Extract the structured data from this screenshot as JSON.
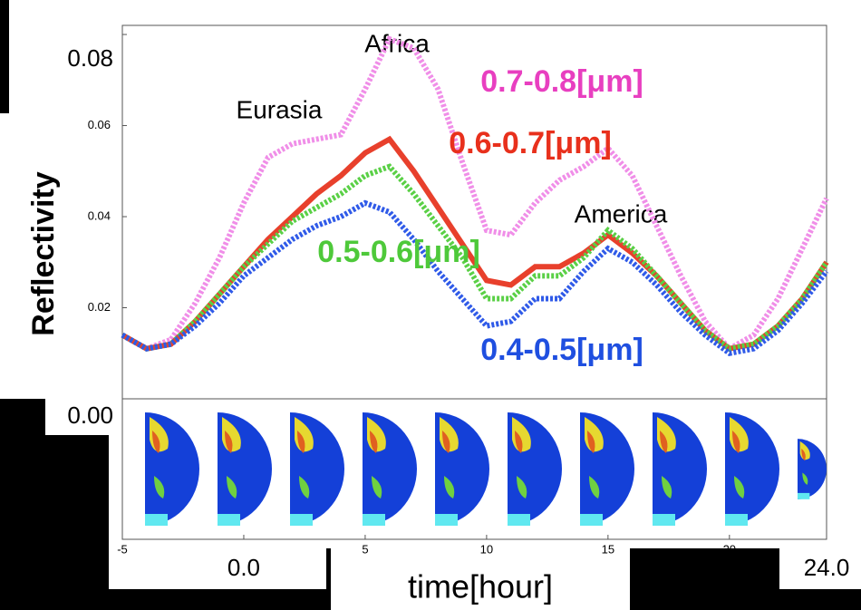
{
  "chart_data": {
    "type": "line",
    "y_label": "Reflectivity",
    "x_label": "time[hour]",
    "x": [
      -5,
      -4,
      -3,
      -2,
      -1,
      0,
      1,
      2,
      3,
      4,
      5,
      6,
      7,
      8,
      9,
      10,
      11,
      12,
      13,
      14,
      15,
      16,
      17,
      18,
      19,
      20,
      21,
      22,
      23,
      24
    ],
    "series": [
      {
        "name": "0.7-0.8[μm]",
        "color": "#e83fc0",
        "line_color": "#f08ee8",
        "dash": true,
        "values": [
          0.014,
          0.011,
          0.013,
          0.021,
          0.031,
          0.043,
          0.053,
          0.056,
          0.057,
          0.058,
          0.068,
          0.079,
          0.077,
          0.068,
          0.052,
          0.037,
          0.036,
          0.043,
          0.048,
          0.051,
          0.055,
          0.049,
          0.038,
          0.027,
          0.017,
          0.011,
          0.014,
          0.022,
          0.033,
          0.044
        ]
      },
      {
        "name": "0.6-0.7[μm]",
        "color": "#e8301c",
        "line_color": "#e8402c",
        "dash": false,
        "values": [
          0.014,
          0.011,
          0.012,
          0.017,
          0.023,
          0.029,
          0.035,
          0.04,
          0.045,
          0.049,
          0.054,
          0.057,
          0.05,
          0.042,
          0.034,
          0.026,
          0.025,
          0.029,
          0.029,
          0.032,
          0.036,
          0.032,
          0.027,
          0.021,
          0.015,
          0.011,
          0.012,
          0.016,
          0.022,
          0.03
        ]
      },
      {
        "name": "0.5-0.6[μm]",
        "color": "#4ec93a",
        "line_color": "#5ad046",
        "dash": true,
        "values": [
          0.014,
          0.011,
          0.012,
          0.017,
          0.023,
          0.029,
          0.034,
          0.039,
          0.042,
          0.045,
          0.049,
          0.051,
          0.045,
          0.038,
          0.031,
          0.022,
          0.022,
          0.027,
          0.027,
          0.031,
          0.037,
          0.033,
          0.027,
          0.021,
          0.015,
          0.011,
          0.012,
          0.016,
          0.022,
          0.03
        ]
      },
      {
        "name": "0.4-0.5[μm]",
        "color": "#1f4fe0",
        "line_color": "#2f5ae8",
        "dash": true,
        "values": [
          0.014,
          0.011,
          0.012,
          0.016,
          0.021,
          0.027,
          0.031,
          0.035,
          0.038,
          0.04,
          0.043,
          0.041,
          0.035,
          0.028,
          0.022,
          0.016,
          0.017,
          0.022,
          0.022,
          0.028,
          0.033,
          0.03,
          0.025,
          0.019,
          0.014,
          0.01,
          0.011,
          0.015,
          0.021,
          0.028
        ]
      }
    ],
    "annotations": [
      "Eurasia",
      "Africa",
      "America"
    ],
    "xlim": [
      -5,
      24
    ],
    "xticks": [
      -5,
      {
        "value": 0,
        "label": "0.0"
      },
      5,
      10,
      15,
      20,
      {
        "value": 24,
        "label": "24.0"
      }
    ],
    "ylim": [
      0,
      0.082
    ],
    "yticks": [
      {
        "value": 0,
        "label": "0.00"
      },
      0.02,
      0.04,
      0.06,
      0.08
    ]
  }
}
